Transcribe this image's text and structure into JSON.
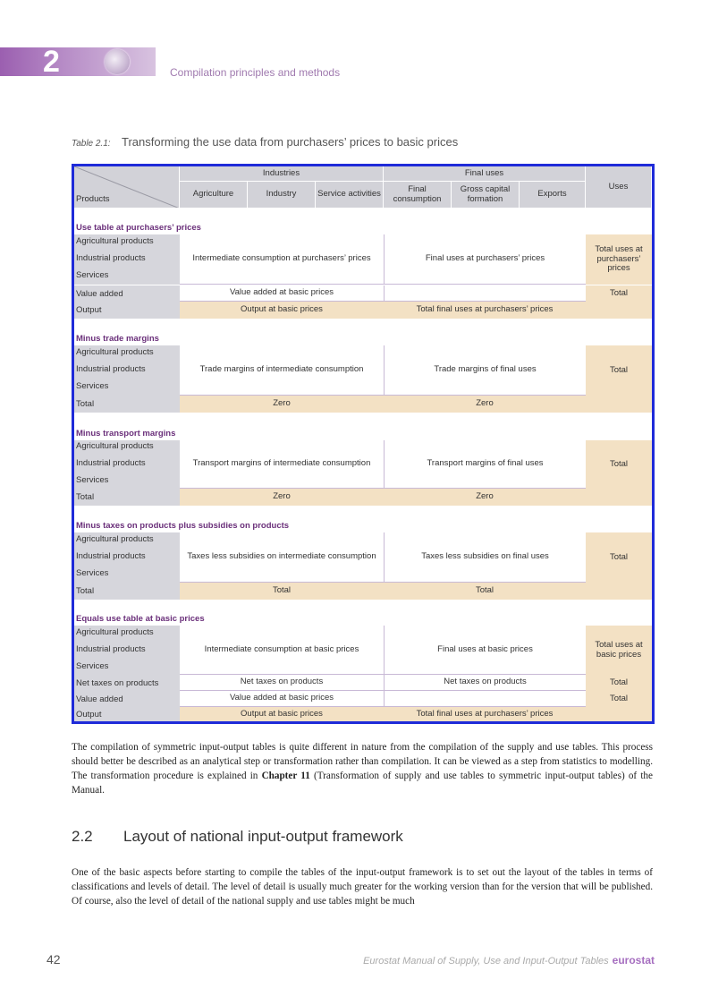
{
  "header": {
    "chapter_number": "2",
    "chapter_title": "Compilation principles and methods"
  },
  "table": {
    "label": "Table 2.1:",
    "title": "Transforming the use data from purchasers’ prices to basic prices",
    "head": {
      "industries": "Industries",
      "final_uses": "Final uses",
      "uses": "Uses",
      "products": "Products",
      "agriculture": "Agriculture",
      "industry": "Industry",
      "service_activities": "Service activities",
      "final_consumption": "Final consumption",
      "gross_capital_formation": "Gross capital formation",
      "exports": "Exports"
    },
    "products": {
      "agri": "Agricultural products",
      "ind": "Industrial products",
      "serv": "Services"
    },
    "s1": {
      "title": "Use table at purchasers’ prices",
      "ic": "Intermediate consumption at purchasers’ prices",
      "fu": "Final uses at purchasers’ prices",
      "total": "Total uses at purchasers’ prices",
      "va_label": "Value added",
      "va_value": "Value added at basic prices",
      "va_total": "Total",
      "out_label": "Output",
      "out_value": "Output at basic prices",
      "out_fu": "Total final uses at purchasers’ prices"
    },
    "s2": {
      "title": "Minus trade margins",
      "ic": "Trade margins of intermediate consumption",
      "fu": "Trade margins of final uses",
      "total": "Total",
      "tot_label": "Total",
      "zero1": "Zero",
      "zero2": "Zero"
    },
    "s3": {
      "title": "Minus transport margins",
      "ic": "Transport margins of intermediate consumption",
      "fu": "Transport margins of final uses",
      "total": "Total",
      "tot_label": "Total",
      "zero1": "Zero",
      "zero2": "Zero"
    },
    "s4": {
      "title": "Minus taxes on products plus subsidies on products",
      "ic": "Taxes less subsidies on intermediate consumption",
      "fu": "Taxes less subsidies on final uses",
      "total": "Total",
      "tot_label": "Total",
      "t1": "Total",
      "t2": "Total"
    },
    "s5": {
      "title": "Equals use table at basic prices",
      "ic": "Intermediate consumption at basic prices",
      "fu": "Final uses at basic prices",
      "total": "Total uses at basic prices",
      "nt_label": "Net taxes on products",
      "nt_value": "Net taxes on products",
      "nt_fu": "Net taxes on products",
      "nt_total": "Total",
      "va_label": "Value added",
      "va_value": "Value added at basic prices",
      "va_total": "Total",
      "out_label": "Output",
      "out_value": "Output at basic prices",
      "out_fu": "Total final uses at purchasers’ prices"
    }
  },
  "para1": {
    "text_a": "The compilation of symmetric input-output tables is quite different in nature from the compilation of the supply and use tables. This process should better be described as an analytical step or transformation rather than compilation. It can be viewed as a step from statistics to modelling. The transformation procedure is explained in ",
    "bold": "Chapter 11",
    "text_b": " (Transformation of supply and use tables to symmetric input-output tables) of the Manual."
  },
  "section": {
    "number": "2.2",
    "title": "Layout of national input-output framework"
  },
  "para2": {
    "text": "One of the basic aspects before starting to compile the tables of the input-output framework is to set out the layout of the tables in terms of classifications and levels of detail. The level of detail is usually much greater for the working version than for the version that will be published. Of course, also the level of detail of the national supply and use tables might be much"
  },
  "footer": {
    "page_number": "42",
    "manual_title": "Eurostat Manual of Supply, Use and Input-Output Tables",
    "brand": "eurostat"
  },
  "colors": {
    "accent": "#9b5fb0",
    "table_border": "#1f2bd9",
    "beige": "#f3e1c4",
    "grey": "#d2d2d8"
  }
}
